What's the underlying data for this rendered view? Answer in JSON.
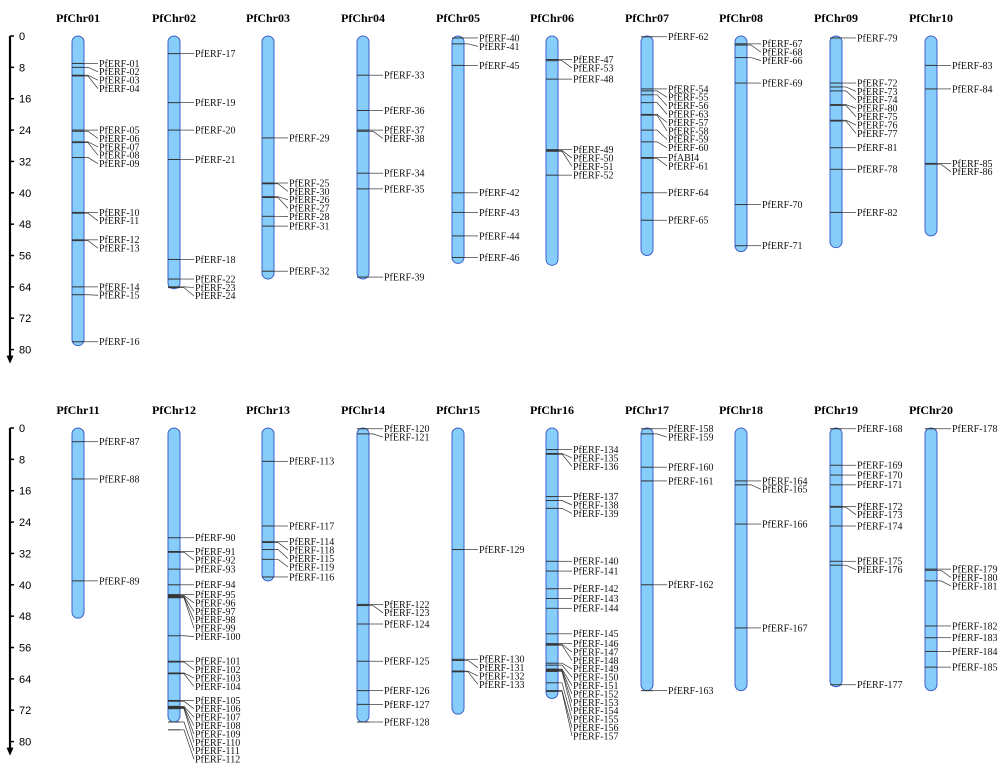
{
  "colors": {
    "chromosome_fill": "#87cdfa",
    "chromosome_stroke": "#3a5fcd",
    "gene_line": "#333333"
  },
  "chart_data": {
    "type": "chromosome-map",
    "axis": {
      "ticks": [
        0,
        8,
        16,
        24,
        32,
        40,
        48,
        56,
        64,
        72,
        80
      ],
      "range": [
        0,
        80
      ]
    },
    "rows": [
      [
        {
          "name": "PfChr01",
          "length": 79,
          "genes": [
            {
              "label": "PfERF-01",
              "pos": 7
            },
            {
              "label": "PfERF-02",
              "pos": 8
            },
            {
              "label": "PfERF-03",
              "pos": 10
            },
            {
              "label": "PfERF-04",
              "pos": 10.2
            },
            {
              "label": "PfERF-05",
              "pos": 24
            },
            {
              "label": "PfERF-06",
              "pos": 24.3
            },
            {
              "label": "PfERF-07",
              "pos": 27
            },
            {
              "label": "PfERF-08",
              "pos": 27.2
            },
            {
              "label": "PfERF-09",
              "pos": 31
            },
            {
              "label": "PfERF-10",
              "pos": 45
            },
            {
              "label": "PfERF-11",
              "pos": 45.2
            },
            {
              "label": "PfERF-12",
              "pos": 52
            },
            {
              "label": "PfERF-13",
              "pos": 52.2
            },
            {
              "label": "PfERF-14",
              "pos": 64
            },
            {
              "label": "PfERF-15",
              "pos": 66
            },
            {
              "label": "PfERF-16",
              "pos": 78
            }
          ]
        },
        {
          "name": "PfChr02",
          "length": 64.5,
          "genes": [
            {
              "label": "PfERF-17",
              "pos": 4.5
            },
            {
              "label": "PfERF-19",
              "pos": 17
            },
            {
              "label": "PfERF-20",
              "pos": 24
            },
            {
              "label": "PfERF-21",
              "pos": 31.5
            },
            {
              "label": "PfERF-18",
              "pos": 57
            },
            {
              "label": "PfERF-22",
              "pos": 62
            },
            {
              "label": "PfERF-23",
              "pos": 64
            },
            {
              "label": "PfERF-24",
              "pos": 64.2
            }
          ]
        },
        {
          "name": "PfChr03",
          "length": 62,
          "genes": [
            {
              "label": "PfERF-29",
              "pos": 26
            },
            {
              "label": "PfERF-25",
              "pos": 37.5
            },
            {
              "label": "PfERF-30",
              "pos": 37.7
            },
            {
              "label": "PfERF-26",
              "pos": 41
            },
            {
              "label": "PfERF-27",
              "pos": 41.2
            },
            {
              "label": "PfERF-28",
              "pos": 46
            },
            {
              "label": "PfERF-31",
              "pos": 48.5
            },
            {
              "label": "PfERF-32",
              "pos": 60
            }
          ]
        },
        {
          "name": "PfChr04",
          "length": 62,
          "genes": [
            {
              "label": "PfERF-33",
              "pos": 10
            },
            {
              "label": "PfERF-36",
              "pos": 19
            },
            {
              "label": "PfERF-37",
              "pos": 24
            },
            {
              "label": "PfERF-38",
              "pos": 24.3
            },
            {
              "label": "PfERF-34",
              "pos": 35
            },
            {
              "label": "PfERF-35",
              "pos": 39
            },
            {
              "label": "PfERF-39",
              "pos": 61.5
            }
          ]
        },
        {
          "name": "PfChr05",
          "length": 58,
          "genes": [
            {
              "label": "PfERF-40",
              "pos": 0.5
            },
            {
              "label": "PfERF-41",
              "pos": 2
            },
            {
              "label": "PfERF-45",
              "pos": 7.5
            },
            {
              "label": "PfERF-42",
              "pos": 40
            },
            {
              "label": "PfERF-43",
              "pos": 45
            },
            {
              "label": "PfERF-44",
              "pos": 51
            },
            {
              "label": "PfERF-46",
              "pos": 56.5
            }
          ]
        },
        {
          "name": "PfChr06",
          "length": 58.5,
          "genes": [
            {
              "label": "PfERF-47",
              "pos": 6
            },
            {
              "label": "PfERF-53",
              "pos": 6.3
            },
            {
              "label": "PfERF-48",
              "pos": 11
            },
            {
              "label": "PfERF-49",
              "pos": 29
            },
            {
              "label": "PfERF-50",
              "pos": 29.2
            },
            {
              "label": "PfERF-51",
              "pos": 29.4
            },
            {
              "label": "PfERF-52",
              "pos": 35.5
            }
          ]
        },
        {
          "name": "PfChr07",
          "length": 56,
          "genes": [
            {
              "label": "PfERF-62",
              "pos": 0.2
            },
            {
              "label": "PfERF-54",
              "pos": 13.5
            },
            {
              "label": "PfERF-55",
              "pos": 14
            },
            {
              "label": "PfERF-56",
              "pos": 15
            },
            {
              "label": "PfERF-63",
              "pos": 17
            },
            {
              "label": "PfERF-57",
              "pos": 20
            },
            {
              "label": "PfERF-58",
              "pos": 20.2
            },
            {
              "label": "PfERF-59",
              "pos": 24
            },
            {
              "label": "PfERF-60",
              "pos": 27
            },
            {
              "label": "PfABI4",
              "pos": 31
            },
            {
              "label": "PfERF-61",
              "pos": 31.2
            },
            {
              "label": "PfERF-64",
              "pos": 40
            },
            {
              "label": "PfERF-65",
              "pos": 47
            }
          ]
        },
        {
          "name": "PfChr08",
          "length": 55,
          "genes": [
            {
              "label": "PfERF-67",
              "pos": 2
            },
            {
              "label": "PfERF-68",
              "pos": 2.3
            },
            {
              "label": "PfERF-66",
              "pos": 5.5
            },
            {
              "label": "PfERF-69",
              "pos": 12
            },
            {
              "label": "PfERF-70",
              "pos": 43
            },
            {
              "label": "PfERF-71",
              "pos": 53.5
            }
          ]
        },
        {
          "name": "PfChr09",
          "length": 54,
          "genes": [
            {
              "label": "PfERF-79",
              "pos": 0.5
            },
            {
              "label": "PfERF-72",
              "pos": 12
            },
            {
              "label": "PfERF-73",
              "pos": 13
            },
            {
              "label": "PfERF-74",
              "pos": 14
            },
            {
              "label": "PfERF-80",
              "pos": 17.5
            },
            {
              "label": "PfERF-75",
              "pos": 17.7
            },
            {
              "label": "PfERF-76",
              "pos": 21.5
            },
            {
              "label": "PfERF-77",
              "pos": 21.7
            },
            {
              "label": "PfERF-81",
              "pos": 28.5
            },
            {
              "label": "PfERF-78",
              "pos": 34
            },
            {
              "label": "PfERF-82",
              "pos": 45
            }
          ]
        },
        {
          "name": "PfChr10",
          "length": 51,
          "genes": [
            {
              "label": "PfERF-83",
              "pos": 7.5
            },
            {
              "label": "PfERF-84",
              "pos": 13.5
            },
            {
              "label": "PfERF-85",
              "pos": 32.5
            },
            {
              "label": "PfERF-86",
              "pos": 32.7
            }
          ]
        }
      ],
      [
        {
          "name": "PfChr11",
          "length": 48.5,
          "genes": [
            {
              "label": "PfERF-87",
              "pos": 3.5
            },
            {
              "label": "PfERF-88",
              "pos": 13
            },
            {
              "label": "PfERF-89",
              "pos": 39
            }
          ]
        },
        {
          "name": "PfChr12",
          "length": 75,
          "genes": [
            {
              "label": "PfERF-90",
              "pos": 28
            },
            {
              "label": "PfERF-91",
              "pos": 31.5
            },
            {
              "label": "PfERF-92",
              "pos": 31.7
            },
            {
              "label": "PfERF-93",
              "pos": 36
            },
            {
              "label": "PfERF-94",
              "pos": 40
            },
            {
              "label": "PfERF-95",
              "pos": 42.5
            },
            {
              "label": "PfERF-96",
              "pos": 42.7
            },
            {
              "label": "PfERF-97",
              "pos": 42.9
            },
            {
              "label": "PfERF-98",
              "pos": 43.1
            },
            {
              "label": "PfERF-99",
              "pos": 43.3
            },
            {
              "label": "PfERF-100",
              "pos": 53
            },
            {
              "label": "PfERF-101",
              "pos": 59.5
            },
            {
              "label": "PfERF-102",
              "pos": 59.7
            },
            {
              "label": "PfERF-103",
              "pos": 62.5
            },
            {
              "label": "PfERF-104",
              "pos": 62.7
            },
            {
              "label": "PfERF-105",
              "pos": 69.5
            },
            {
              "label": "PfERF-106",
              "pos": 69.7
            },
            {
              "label": "PfERF-107",
              "pos": 71
            },
            {
              "label": "PfERF-108",
              "pos": 71.2
            },
            {
              "label": "PfERF-109",
              "pos": 71.4
            },
            {
              "label": "PfERF-110",
              "pos": 71.6
            },
            {
              "label": "PfERF-111",
              "pos": 75
            },
            {
              "label": "PfERF-112",
              "pos": 77
            }
          ]
        },
        {
          "name": "PfChr13",
          "length": 39,
          "genes": [
            {
              "label": "PfERF-113",
              "pos": 8.5
            },
            {
              "label": "PfERF-117",
              "pos": 25
            },
            {
              "label": "PfERF-114",
              "pos": 29
            },
            {
              "label": "PfERF-118",
              "pos": 29.2
            },
            {
              "label": "PfERF-115",
              "pos": 31
            },
            {
              "label": "PfERF-119",
              "pos": 33.5
            },
            {
              "label": "PfERF-116",
              "pos": 38
            }
          ]
        },
        {
          "name": "PfChr14",
          "length": 75,
          "genes": [
            {
              "label": "PfERF-120",
              "pos": 0.2
            },
            {
              "label": "PfERF-121",
              "pos": 1.5
            },
            {
              "label": "PfERF-122",
              "pos": 45
            },
            {
              "label": "PfERF-123",
              "pos": 45.3
            },
            {
              "label": "PfERF-124",
              "pos": 50
            },
            {
              "label": "PfERF-125",
              "pos": 59.5
            },
            {
              "label": "PfERF-126",
              "pos": 67
            },
            {
              "label": "PfERF-127",
              "pos": 70.5
            },
            {
              "label": "PfERF-128",
              "pos": 75
            }
          ]
        },
        {
          "name": "PfChr15",
          "length": 73,
          "genes": [
            {
              "label": "PfERF-129",
              "pos": 31
            },
            {
              "label": "PfERF-130",
              "pos": 59
            },
            {
              "label": "PfERF-131",
              "pos": 59.3
            },
            {
              "label": "PfERF-132",
              "pos": 62
            },
            {
              "label": "PfERF-133",
              "pos": 62.2
            }
          ]
        },
        {
          "name": "PfChr16",
          "length": 69,
          "genes": [
            {
              "label": "PfERF-134",
              "pos": 5.5
            },
            {
              "label": "PfERF-135",
              "pos": 6.5
            },
            {
              "label": "PfERF-136",
              "pos": 6.7
            },
            {
              "label": "PfERF-137",
              "pos": 17.5
            },
            {
              "label": "PfERF-138",
              "pos": 18.5
            },
            {
              "label": "PfERF-139",
              "pos": 20.5
            },
            {
              "label": "PfERF-140",
              "pos": 34
            },
            {
              "label": "PfERF-141",
              "pos": 36.5
            },
            {
              "label": "PfERF-142",
              "pos": 41
            },
            {
              "label": "PfERF-143",
              "pos": 43.5
            },
            {
              "label": "PfERF-144",
              "pos": 46
            },
            {
              "label": "PfERF-145",
              "pos": 52.5
            },
            {
              "label": "PfERF-146",
              "pos": 55
            },
            {
              "label": "PfERF-147",
              "pos": 55.2
            },
            {
              "label": "PfERF-148",
              "pos": 55.4
            },
            {
              "label": "PfERF-149",
              "pos": 60
            },
            {
              "label": "PfERF-150",
              "pos": 60.5
            },
            {
              "label": "PfERF-151",
              "pos": 61.5
            },
            {
              "label": "PfERF-152",
              "pos": 61.7
            },
            {
              "label": "PfERF-153",
              "pos": 61.9
            },
            {
              "label": "PfERF-154",
              "pos": 62.1
            },
            {
              "label": "PfERF-155",
              "pos": 65
            },
            {
              "label": "PfERF-156",
              "pos": 67
            },
            {
              "label": "PfERF-157",
              "pos": 67.2
            }
          ]
        },
        {
          "name": "PfChr17",
          "length": 67,
          "genes": [
            {
              "label": "PfERF-158",
              "pos": 0.2
            },
            {
              "label": "PfERF-159",
              "pos": 1.5
            },
            {
              "label": "PfERF-160",
              "pos": 10
            },
            {
              "label": "PfERF-161",
              "pos": 13.5
            },
            {
              "label": "PfERF-162",
              "pos": 40
            },
            {
              "label": "PfERF-163",
              "pos": 67
            }
          ]
        },
        {
          "name": "PfChr18",
          "length": 67,
          "genes": [
            {
              "label": "PfERF-164",
              "pos": 13.5
            },
            {
              "label": "PfERF-165",
              "pos": 14.5
            },
            {
              "label": "PfERF-166",
              "pos": 24.5
            },
            {
              "label": "PfERF-167",
              "pos": 51
            }
          ]
        },
        {
          "name": "PfChr19",
          "length": 66,
          "genes": [
            {
              "label": "PfERF-168",
              "pos": 0.2
            },
            {
              "label": "PfERF-169",
              "pos": 9.5
            },
            {
              "label": "PfERF-170",
              "pos": 12
            },
            {
              "label": "PfERF-171",
              "pos": 14.5
            },
            {
              "label": "PfERF-172",
              "pos": 20
            },
            {
              "label": "PfERF-173",
              "pos": 20.2
            },
            {
              "label": "PfERF-174",
              "pos": 25
            },
            {
              "label": "PfERF-175",
              "pos": 34
            },
            {
              "label": "PfERF-176",
              "pos": 35
            },
            {
              "label": "PfERF-177",
              "pos": 65.5
            }
          ]
        },
        {
          "name": "PfChr20",
          "length": 67,
          "genes": [
            {
              "label": "PfERF-178",
              "pos": 0.2
            },
            {
              "label": "PfERF-179",
              "pos": 36
            },
            {
              "label": "PfERF-180",
              "pos": 36.3
            },
            {
              "label": "PfERF-181",
              "pos": 39
            },
            {
              "label": "PfERF-182",
              "pos": 50.5
            },
            {
              "label": "PfERF-183",
              "pos": 53.5
            },
            {
              "label": "PfERF-184",
              "pos": 57
            },
            {
              "label": "PfERF-185",
              "pos": 61
            }
          ]
        }
      ]
    ]
  }
}
